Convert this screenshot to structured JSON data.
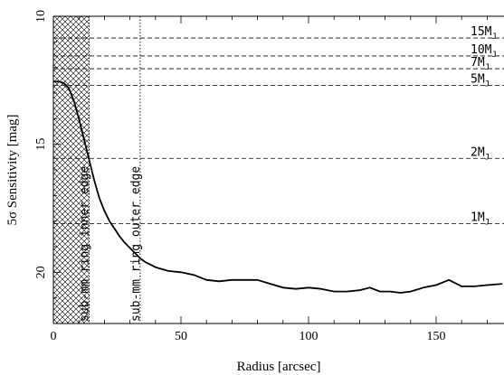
{
  "chart_data": {
    "type": "line",
    "xlabel": "Radius [arcsec]",
    "ylabel": "5σ Sensitivity [mag]",
    "xlim": [
      0,
      176
    ],
    "ylim": [
      22,
      10
    ],
    "y_inverted": true,
    "xticks": [
      0,
      50,
      100,
      150
    ],
    "yticks": [
      10,
      15,
      20
    ],
    "series": [
      {
        "x": [
          0,
          2,
          4,
          6,
          8,
          10,
          12,
          14,
          16,
          18,
          20,
          22,
          24,
          26,
          28,
          30,
          32,
          34,
          36,
          38,
          40,
          45,
          50,
          55,
          60,
          65,
          70,
          75,
          80,
          85,
          90,
          95,
          100,
          105,
          110,
          115,
          120,
          124,
          128,
          132,
          136,
          140,
          145,
          150,
          155,
          160,
          165,
          170,
          176
        ],
        "y": [
          12.55,
          12.55,
          12.6,
          12.8,
          13.3,
          14.0,
          14.8,
          15.6,
          16.4,
          17.1,
          17.6,
          18.0,
          18.3,
          18.6,
          18.85,
          19.05,
          19.25,
          19.45,
          19.6,
          19.7,
          19.8,
          19.95,
          20.0,
          20.1,
          20.3,
          20.35,
          20.3,
          20.3,
          20.3,
          20.45,
          20.6,
          20.65,
          20.6,
          20.65,
          20.75,
          20.75,
          20.7,
          20.6,
          20.75,
          20.75,
          20.8,
          20.75,
          20.6,
          20.5,
          20.3,
          20.55,
          20.55,
          20.5,
          20.45
        ]
      }
    ],
    "mass_lines": [
      {
        "label": "15M",
        "sub": "J",
        "y": 10.85
      },
      {
        "label": "10M",
        "sub": "J",
        "y": 11.55
      },
      {
        "label": "7M",
        "sub": "J",
        "y": 12.05
      },
      {
        "label": "5M",
        "sub": "J",
        "y": 12.7
      },
      {
        "label": "2M",
        "sub": "J",
        "y": 15.55
      },
      {
        "label": "1M",
        "sub": "J",
        "y": 18.1
      }
    ],
    "annotations": [
      {
        "text": "sub-mm ring inner edge",
        "x": 14
      },
      {
        "text": "sub-mm ring outer edge",
        "x": 34
      }
    ],
    "hatched_region": [
      0,
      14
    ]
  }
}
